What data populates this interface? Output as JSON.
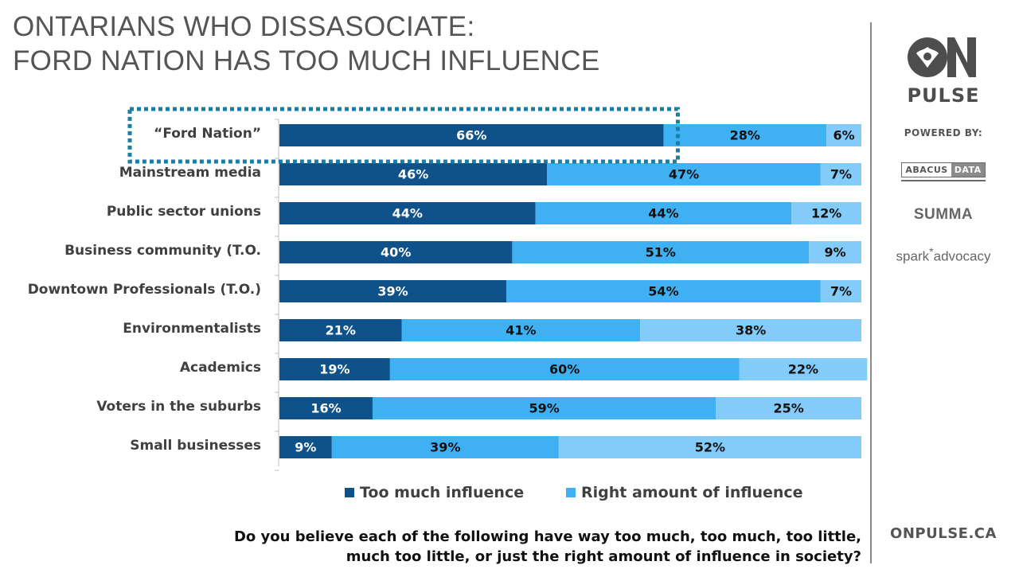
{
  "title": {
    "line1": "ONTARIANS WHO DISSASOCIATE:",
    "line2": "FORD NATION HAS TOO MUCH INFLUENCE"
  },
  "chart_data": {
    "type": "bar",
    "orientation": "horizontal",
    "stacked": true,
    "percent_stacked": true,
    "categories": [
      "“Ford Nation”",
      "Mainstream media",
      "Public sector unions",
      "Business community (T.O.",
      "Downtown Professionals (T.O.)",
      "Environmentalists",
      "Academics",
      "Voters in the suburbs",
      "Small businesses"
    ],
    "series": [
      {
        "name": "Too much influence",
        "color": "#0e5289",
        "label_color": "#ffffff",
        "values": [
          66,
          46,
          44,
          40,
          39,
          21,
          19,
          16,
          9
        ]
      },
      {
        "name": "Right amount of influence",
        "color": "#3fb0f2",
        "label_color": "#111111",
        "values": [
          28,
          47,
          44,
          51,
          54,
          41,
          60,
          59,
          39
        ]
      },
      {
        "color": "#83cbf8",
        "label_color": "#111111",
        "values": [
          6,
          7,
          12,
          9,
          7,
          38,
          22,
          25,
          52
        ]
      }
    ],
    "value_suffix": "%",
    "xlim": [
      0,
      100
    ],
    "grid": false,
    "legend_position": "bottom",
    "highlight": {
      "category_index": 0,
      "series_index": 0,
      "style": "dotted-box",
      "color": "#1a7ea6"
    }
  },
  "legend": {
    "items": [
      {
        "label": "Too much influence",
        "color": "#0e5289"
      },
      {
        "label": "Right amount of influence",
        "color": "#3fb0f2"
      }
    ]
  },
  "question": {
    "line1": "Do you believe each of the following have way too much, too much, too little,",
    "line2": "much too little, or just the right amount of influence in society?"
  },
  "brand": {
    "logo_text": "ON",
    "logo_color": "#4d4d4d",
    "pulse": "PULSE",
    "powered_by": "POWERED BY:",
    "abacus_left": "ABACUS",
    "abacus_right": "DATA",
    "summa": "SUMMA",
    "spark_left": "spark",
    "spark_star": "*",
    "spark_right": "advocacy",
    "website": "ONPULSE.CA"
  }
}
